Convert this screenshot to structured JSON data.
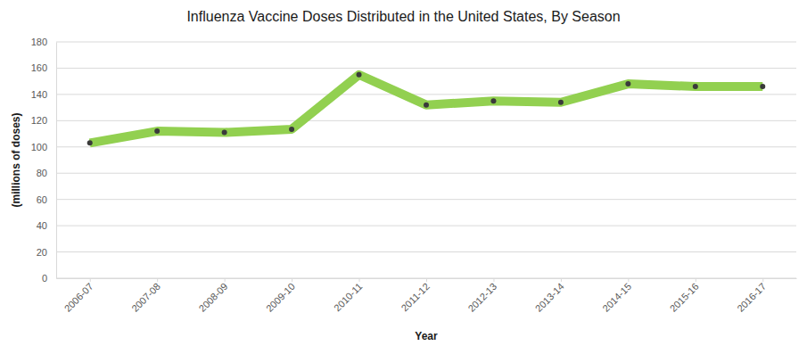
{
  "chart_data": {
    "type": "line",
    "title": "Influenza Vaccine Doses Distributed in the United States, By Season",
    "x_label": "Year",
    "y_label": "(millions of doses)",
    "categories": [
      "2006-07",
      "2007-08",
      "2008-09",
      "2009-10",
      "2010-11",
      "2011-12",
      "2012-13",
      "2013-14",
      "2014-15",
      "2015-16",
      "2016-17"
    ],
    "values": [
      103,
      112,
      111,
      113.5,
      155,
      132,
      135,
      134,
      148,
      146,
      146
    ],
    "color": "#92d050",
    "marker": "circle",
    "line_style": "solid",
    "ylim": [
      0,
      180
    ],
    "yticks": [
      0,
      20,
      40,
      60,
      80,
      100,
      120,
      140,
      160,
      180
    ],
    "grid": true
  }
}
